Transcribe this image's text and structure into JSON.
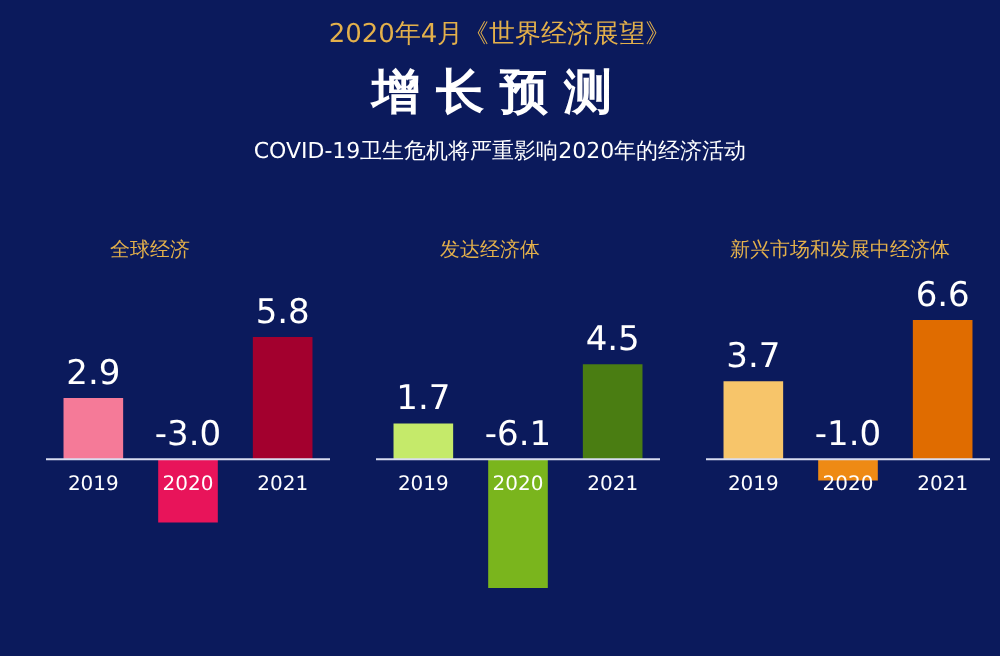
{
  "chart_data": [
    {
      "type": "other",
      "title": "增长预测",
      "subtitle": "COVID-19卫生危机将严重影响2020年的经济活动",
      "annotations": [
        "2020年4月《世界经济展望》"
      ]
    },
    {
      "type": "bar",
      "title": "全球经济",
      "categories": [
        "2019",
        "2020",
        "2021"
      ],
      "values": [
        2.9,
        -3.0,
        5.8
      ],
      "value_labels": [
        "2.9",
        "-3.0",
        "5.8"
      ],
      "colors": [
        "#f57a98",
        "#e8145a",
        "#a3002e"
      ]
    },
    {
      "type": "bar",
      "title": "发达经济体",
      "categories": [
        "2019",
        "2020",
        "2021"
      ],
      "values": [
        1.7,
        -6.1,
        4.5
      ],
      "value_labels": [
        "1.7",
        "-6.1",
        "4.5"
      ],
      "colors": [
        "#c5ea6a",
        "#7ab51d",
        "#4a7d12"
      ]
    },
    {
      "type": "bar",
      "title": "新兴市场和发展中经济体",
      "categories": [
        "2019",
        "2020",
        "2021"
      ],
      "values": [
        3.7,
        -1.0,
        6.6
      ],
      "value_labels": [
        "3.7",
        "-1.0",
        "6.6"
      ],
      "colors": [
        "#f7c56a",
        "#ee8a14",
        "#e06c00"
      ]
    }
  ]
}
